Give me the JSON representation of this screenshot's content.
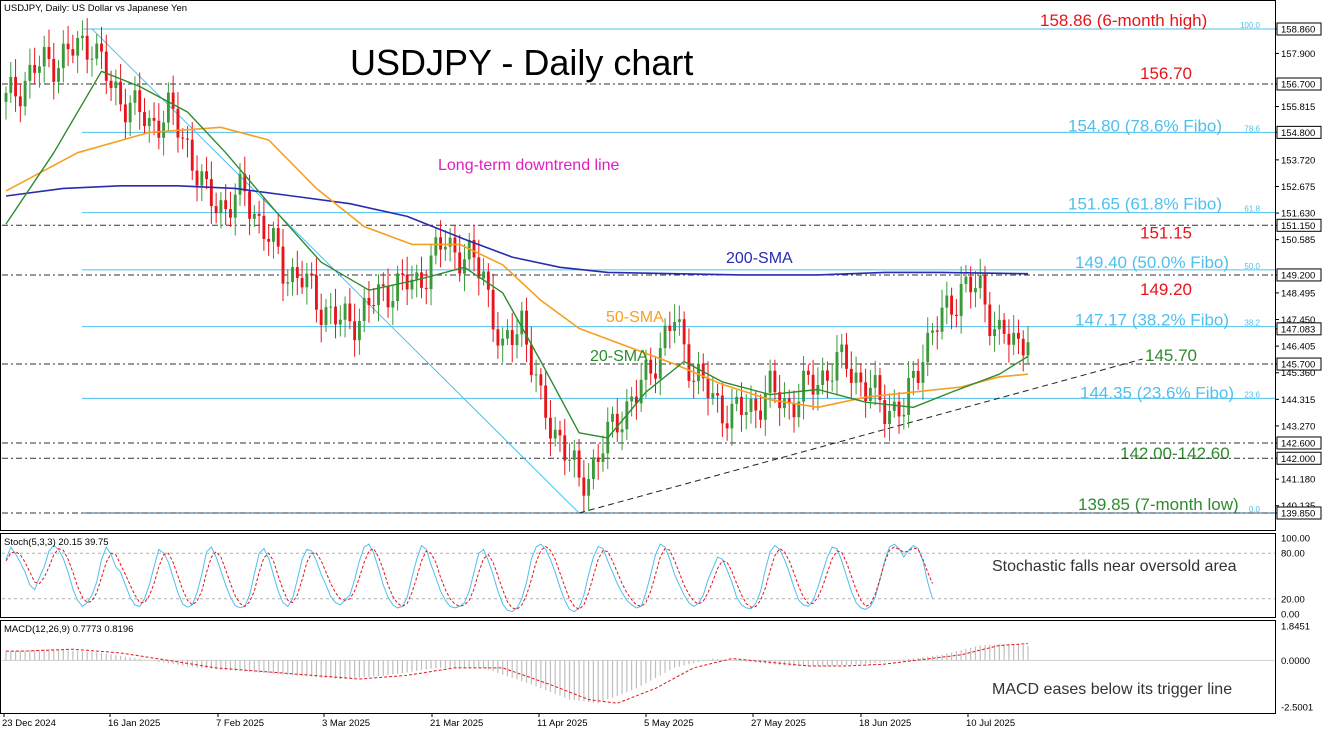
{
  "header": {
    "symbol_info": "USDJPY, Daily:  US Dollar vs Japanese Yen",
    "main_title": "USDJPY - Daily chart"
  },
  "colors": {
    "bull": "#3a9a3a",
    "bear": "#e8141b",
    "sma20": "#2e8b2e",
    "sma50": "#f5a021",
    "sma200": "#2a2ab0",
    "fibo": "#4fc0ee",
    "annotation_red": "#e8141b",
    "annotation_green": "#2e8b2e",
    "annotation_pink": "#e01ec0",
    "stoch_k": "#4fc0ee",
    "stoch_d": "#e8141b",
    "macd_hist": "#bfbfbf",
    "macd_signal": "#e8141b"
  },
  "chart_data": [
    {
      "type": "candlestick",
      "title": "USDJPY - Daily chart",
      "ylim": [
        139.5,
        159.2
      ],
      "price_ticks": [
        "158.860",
        "157.900",
        "156.700",
        "155.815",
        "154.800",
        "153.720",
        "152.675",
        "151.630",
        "151.150",
        "150.585",
        "149.200",
        "148.495",
        "147.450",
        "147.083",
        "146.405",
        "145.700",
        "145.360",
        "144.315",
        "143.270",
        "142.600",
        "142.000",
        "141.180",
        "140.135",
        "139.850"
      ],
      "date_labels": [
        "23 Dec 2024",
        "16 Jan 2025",
        "7 Feb 2025",
        "3 Mar 2025",
        "21 Mar 2025",
        "11 Apr 2025",
        "5 May 2025",
        "27 May 2025",
        "18 Jun 2025",
        "10 Jul 2025"
      ],
      "horizontal_levels": [
        {
          "label": "158.86 (6-month high)",
          "value": 158.86,
          "color": "red",
          "style": "fibo"
        },
        {
          "label": "156.70",
          "value": 156.7,
          "color": "red",
          "style": "dash"
        },
        {
          "label": "154.80 (78.6% Fibo)",
          "value": 154.8,
          "color": "fibo",
          "style": "fibo"
        },
        {
          "label": "151.65 (61.8% Fibo)",
          "value": 151.65,
          "color": "fibo",
          "style": "fibo"
        },
        {
          "label": "151.15",
          "value": 151.15,
          "color": "red",
          "style": "dash"
        },
        {
          "label": "149.40 (50.0% Fibo)",
          "value": 149.4,
          "color": "fibo",
          "style": "fibo"
        },
        {
          "label": "149.20",
          "value": 149.2,
          "color": "red",
          "style": "dash"
        },
        {
          "label": "147.17 (38.2% Fibo)",
          "value": 147.17,
          "color": "fibo",
          "style": "fibo"
        },
        {
          "label": "145.70",
          "value": 145.7,
          "color": "green",
          "style": "dash"
        },
        {
          "label": "144.35 (23.6% Fibo)",
          "value": 144.35,
          "color": "fibo",
          "style": "fibo"
        },
        {
          "label": "142.00-142.60",
          "value": 142.6,
          "color": "green",
          "style": "dash"
        },
        {
          "label": "",
          "value": 142.0,
          "color": "green",
          "style": "dash"
        },
        {
          "label": "139.85 (7-month low)",
          "value": 139.85,
          "color": "green",
          "style": "fibo"
        }
      ],
      "fibo_small_labels": [
        "100.0",
        "78.6",
        "61.8",
        "50.0",
        "38.2",
        "23.6",
        "0.0"
      ],
      "indicator_labels": {
        "sma200": "200-SMA",
        "sma50": "50-SMA",
        "sma20": "20-SMA",
        "downtrend": "Long-term downtrend line"
      },
      "current_price": "147.083",
      "sma20": [
        [
          0,
          151.2
        ],
        [
          10,
          154.0
        ],
        [
          20,
          157.2
        ],
        [
          28,
          156.6
        ],
        [
          38,
          155.6
        ],
        [
          46,
          154.0
        ],
        [
          56,
          151.8
        ],
        [
          66,
          149.7
        ],
        [
          76,
          148.6
        ],
        [
          86,
          149.0
        ],
        [
          96,
          149.5
        ],
        [
          104,
          148.5
        ],
        [
          112,
          145.8
        ],
        [
          120,
          143.0
        ],
        [
          126,
          142.8
        ],
        [
          134,
          144.6
        ],
        [
          142,
          145.8
        ],
        [
          150,
          145.0
        ],
        [
          160,
          144.5
        ],
        [
          170,
          144.7
        ],
        [
          180,
          144.2
        ],
        [
          190,
          144.0
        ],
        [
          198,
          144.6
        ],
        [
          208,
          145.3
        ],
        [
          214,
          146.0
        ]
      ],
      "sma50": [
        [
          0,
          152.5
        ],
        [
          15,
          154.0
        ],
        [
          30,
          154.8
        ],
        [
          45,
          155.0
        ],
        [
          55,
          154.5
        ],
        [
          65,
          152.6
        ],
        [
          75,
          151.1
        ],
        [
          85,
          150.4
        ],
        [
          95,
          150.4
        ],
        [
          104,
          149.6
        ],
        [
          112,
          148.2
        ],
        [
          120,
          147.1
        ],
        [
          130,
          146.4
        ],
        [
          140,
          145.7
        ],
        [
          150,
          144.9
        ],
        [
          160,
          144.3
        ],
        [
          170,
          144.0
        ],
        [
          180,
          144.4
        ],
        [
          190,
          144.6
        ],
        [
          200,
          144.8
        ],
        [
          208,
          145.2
        ],
        [
          214,
          145.3
        ]
      ],
      "sma200": [
        [
          0,
          152.3
        ],
        [
          12,
          152.6
        ],
        [
          24,
          152.7
        ],
        [
          36,
          152.7
        ],
        [
          48,
          152.6
        ],
        [
          60,
          152.3
        ],
        [
          72,
          152.0
        ],
        [
          84,
          151.5
        ],
        [
          96,
          150.6
        ],
        [
          106,
          149.9
        ],
        [
          116,
          149.5
        ],
        [
          126,
          149.3
        ],
        [
          140,
          149.25
        ],
        [
          154,
          149.2
        ],
        [
          170,
          149.2
        ],
        [
          184,
          149.3
        ],
        [
          196,
          149.3
        ],
        [
          214,
          149.25
        ]
      ],
      "downtrend_line": [
        [
          18,
          158.86
        ],
        [
          120,
          139.85
        ]
      ],
      "uptrend_line": [
        [
          120,
          139.85
        ],
        [
          238,
          145.9
        ]
      ]
    },
    {
      "type": "line",
      "title": "Stoch(5,3,3) 20.15 39.75",
      "ylim": [
        0,
        100
      ],
      "ticks": [
        "100.00",
        "80.00",
        "20.00",
        "0.00"
      ],
      "annotation": "Stochastic falls near oversold area",
      "series": [
        {
          "name": "%K",
          "values": [
            72,
            88,
            79,
            68,
            55,
            38,
            32,
            48,
            62,
            83,
            90,
            85,
            73,
            55,
            33,
            18,
            10,
            15,
            25,
            42,
            72,
            88,
            78,
            62,
            55,
            38,
            22,
            12,
            10,
            20,
            38,
            62,
            85,
            80,
            68,
            48,
            28,
            13,
            9,
            12,
            28,
            52,
            82,
            88,
            75,
            57,
            38,
            22,
            11,
            8,
            10,
            25,
            52,
            80,
            86,
            73,
            52,
            30,
            15,
            10,
            20,
            45,
            72,
            85,
            83,
            70,
            52,
            38,
            23,
            15,
            12,
            18,
            25,
            45,
            70,
            88,
            92,
            80,
            60,
            38,
            22,
            12,
            8,
            10,
            22,
            48,
            72,
            90,
            85,
            65,
            48,
            30,
            18,
            10,
            8,
            10,
            15,
            30,
            55,
            80,
            85,
            70,
            52,
            30,
            13,
            5,
            3,
            8,
            20,
            42,
            72,
            88,
            92,
            85,
            72,
            55,
            35,
            18,
            6,
            3,
            8,
            25,
            52,
            75,
            89,
            86,
            70,
            55,
            40,
            28,
            18,
            12,
            8,
            10,
            28,
            52,
            78,
            92,
            88,
            72,
            52,
            38,
            25,
            15,
            10,
            14,
            25,
            45,
            60,
            75,
            72,
            58,
            42,
            22,
            12,
            8,
            7,
            14,
            30,
            58,
            82,
            90,
            85,
            72,
            55,
            35,
            18,
            12,
            10,
            18,
            35,
            55,
            75,
            88,
            86,
            70,
            50,
            30,
            15,
            8,
            6,
            10,
            22,
            45,
            70,
            88,
            92,
            86,
            75,
            84,
            90,
            86,
            70,
            42,
            20
          ]
        },
        {
          "name": "%D",
          "values": [
            70,
            80,
            82,
            78,
            68,
            55,
            42,
            40,
            48,
            62,
            78,
            86,
            84,
            72,
            55,
            36,
            22,
            15,
            17,
            28,
            48,
            68,
            80,
            78,
            65,
            52,
            38,
            25,
            15,
            15,
            24,
            40,
            62,
            78,
            80,
            68,
            50,
            32,
            18,
            12,
            17,
            30,
            55,
            75,
            82,
            75,
            58,
            40,
            24,
            14,
            10,
            16,
            30,
            55,
            74,
            80,
            70,
            50,
            32,
            18,
            15,
            25,
            45,
            68,
            80,
            80,
            70,
            55,
            40,
            28,
            20,
            18,
            20,
            30,
            48,
            68,
            83,
            86,
            75,
            58,
            38,
            23,
            14,
            10,
            14,
            28,
            48,
            70,
            83,
            80,
            68,
            48,
            32,
            20,
            13,
            10,
            12,
            18,
            33,
            55,
            73,
            78,
            68,
            50,
            32,
            16,
            8,
            6,
            12,
            25,
            45,
            68,
            84,
            89,
            84,
            72,
            54,
            36,
            20,
            10,
            6,
            12,
            28,
            50,
            72,
            84,
            82,
            70,
            55,
            40,
            28,
            19,
            12,
            10,
            15,
            30,
            52,
            75,
            86,
            84,
            70,
            54,
            38,
            26,
            17,
            13,
            17,
            28,
            43,
            60,
            70,
            68,
            56,
            40,
            25,
            14,
            9,
            10,
            18,
            34,
            57,
            77,
            86,
            82,
            70,
            54,
            36,
            22,
            14,
            14,
            22,
            36,
            55,
            73,
            83,
            81,
            68,
            50,
            32,
            18,
            10,
            13,
            26,
            46,
            68,
            84,
            88,
            85,
            81,
            83,
            87,
            85,
            72,
            55,
            40
          ]
        }
      ]
    },
    {
      "type": "bar",
      "title": "MACD(12,26,9) 0.7773 0.8196",
      "ylim": [
        -2.5001,
        1.8451
      ],
      "ticks": [
        "1.8451",
        "0.0000",
        "-2.5001"
      ],
      "annotation": "MACD eases below its trigger line"
    }
  ]
}
